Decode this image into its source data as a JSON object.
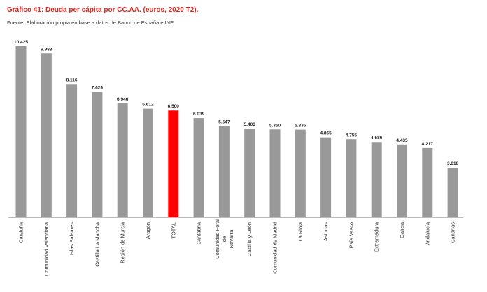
{
  "title": "Gráfico 41: Deuda per cápita por CC.AA. (euros, 2020 T2).",
  "source": "Fuente: Elaboración propia en base a datos de Banco de España e INE",
  "colors": {
    "bar": "#999999",
    "highlight": "#ff0000",
    "axis": "#bbbbbb"
  },
  "chart_data": {
    "type": "bar",
    "title": "Gráfico 41: Deuda per cápita por CC.AA. (euros, 2020 T2).",
    "xlabel": "",
    "ylabel": "",
    "ylim": [
      0,
      10425
    ],
    "grid": false,
    "legend": "none",
    "categories": [
      "Cataluña",
      "Comunidad Valenciana",
      "Islas Baleares",
      "Castilla La Mancha",
      "Región de Murcia",
      "Aragón",
      "TOTAL",
      "Cantabria",
      "Comunidad Foral de Navarra",
      "Castilla y León",
      "Comunidad de Madrid",
      "La Rioja",
      "Asturias",
      "País Vasco",
      "Extremadura",
      "Galicia",
      "Andalucía",
      "Canarias"
    ],
    "category_lines": [
      [
        "Cataluña"
      ],
      [
        "Comunidad Valenciana"
      ],
      [
        "Islas Baleares"
      ],
      [
        "Castilla La Mancha"
      ],
      [
        "Región de Murcia"
      ],
      [
        "Aragón"
      ],
      [
        "TOTAL"
      ],
      [
        "Cantabria"
      ],
      [
        "Comunidad Foral",
        "de",
        "Navarra"
      ],
      [
        "Castilla y León"
      ],
      [
        "Comunidad de Madrid"
      ],
      [
        "La Rioja"
      ],
      [
        "Asturias"
      ],
      [
        "País Vasco"
      ],
      [
        "Extremadura"
      ],
      [
        "Galicia"
      ],
      [
        "Andalucía"
      ],
      [
        "Canarias"
      ]
    ],
    "values": [
      10425,
      9988,
      8116,
      7629,
      6946,
      6612,
      6500,
      6039,
      5547,
      5403,
      5350,
      5335,
      4865,
      4755,
      4586,
      4435,
      4217,
      3018
    ],
    "value_labels": [
      "10.425",
      "9.988",
      "8.116",
      "7.629",
      "6.946",
      "6.612",
      "6.500",
      "6.039",
      "5.547",
      "5.403",
      "5.350",
      "5.335",
      "4.865",
      "4.755",
      "4.586",
      "4.435",
      "4.217",
      "3.018"
    ],
    "highlight_index": 6
  }
}
